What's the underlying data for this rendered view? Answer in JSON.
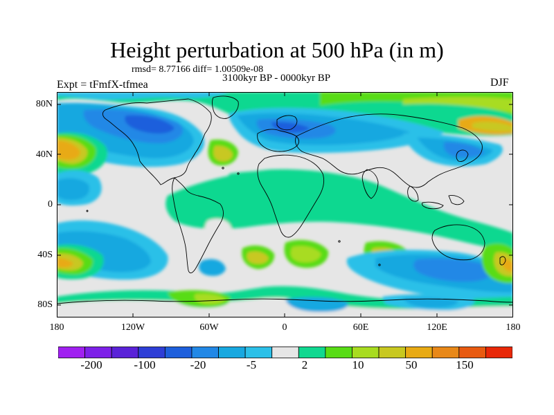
{
  "figure": {
    "title": "Height perturbation at 500 hPa (in m)",
    "stats": "rmsd= 8.77166 diff= 1.00509e-08",
    "subtitle": "3100kyr BP - 0000kyr BP",
    "experiment": "Expt = tFmfX-tfmea",
    "season": "DJF"
  },
  "axes": {
    "y_ticks": [
      "80N",
      "40N",
      "0",
      "40S",
      "80S"
    ],
    "x_ticks": [
      "180",
      "120W",
      "60W",
      "0",
      "60E",
      "120E",
      "180"
    ]
  },
  "colorbar": {
    "colors": [
      "#a020f0",
      "#7d20e8",
      "#5a22d8",
      "#2e3ed6",
      "#1e5fdc",
      "#2288e6",
      "#18a8e0",
      "#2cc0e8",
      "#e6e6e6",
      "#10d890",
      "#58dc16",
      "#a8dc20",
      "#c8c820",
      "#e8aa14",
      "#e88818",
      "#e85a10",
      "#e82808"
    ],
    "labels": [
      "-200",
      "-100",
      "-20",
      "-5",
      "2",
      "10",
      "50",
      "150"
    ]
  },
  "map": {
    "background_color": "#e6e6e6",
    "projection": "cylindrical equidistant"
  }
}
